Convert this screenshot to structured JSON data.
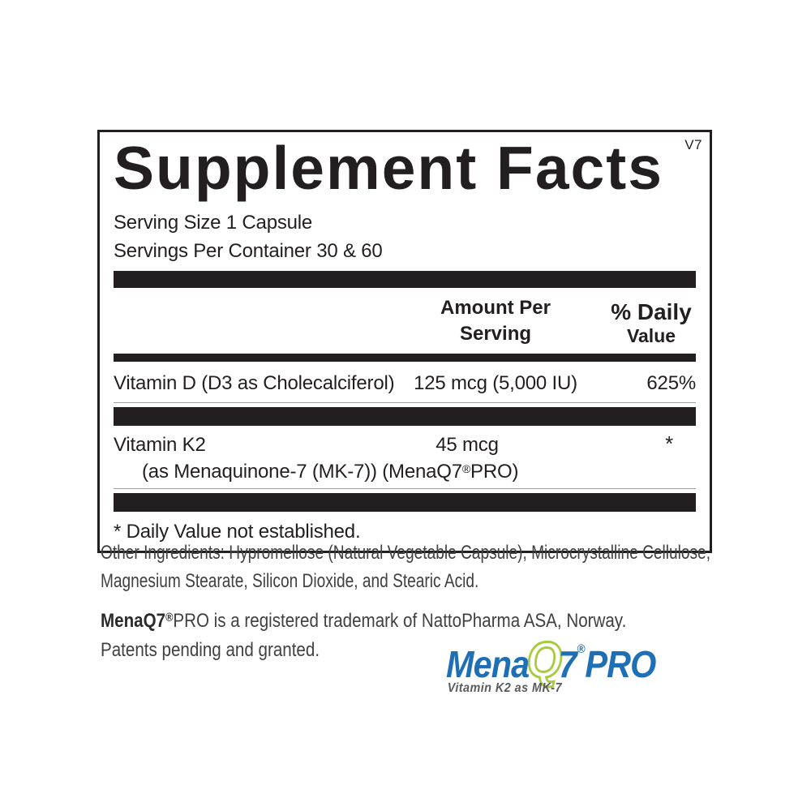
{
  "panel": {
    "version": "V7",
    "title": "Supplement Facts",
    "serving_size": "Serving Size 1 Capsule",
    "servings_per_container": "Servings Per Container 30 & 60",
    "header": {
      "amount_line1": "Amount Per",
      "amount_line2": "Serving",
      "dv_line1": "% Daily",
      "dv_line2": "Value"
    },
    "rows": [
      {
        "name": "Vitamin D (D3 as Cholecalciferol)",
        "amount": "125 mcg (5,000 IU)",
        "daily_value": "625%"
      },
      {
        "name": "Vitamin K2",
        "sub_pre": "(as Menaquinone-7 (MK-7)) (MenaQ7",
        "sub_reg": "®",
        "sub_post": "PRO)",
        "amount": "45 mcg",
        "daily_value": "*"
      }
    ],
    "footnote": "* Daily Value not established."
  },
  "other_ingredients": {
    "line1": "Other Ingredients: Hypromellose (Natural Vegetable Capsule), Microcrystalline Cellulose,",
    "line2": "Magnesium Stearate, Silicon Dioxide, and Stearic Acid."
  },
  "trademark": {
    "brand_bold": "MenaQ7",
    "reg_mark": "®",
    "line1_rest": "PRO is a registered trademark of NattoPharma ASA, Norway.",
    "line2": "Patents pending and granted."
  },
  "logo": {
    "word_part1": "Mena",
    "word_q": "Q",
    "word_part2": "7",
    "reg_mark": "®",
    "word_part3": "PRO",
    "tagline": "Vitamin K2 as MK-7",
    "colors": {
      "blue": "#1f6fb4",
      "green": "#a6cb3d",
      "tagline_gray": "#5a5b5e",
      "text_black": "#231f20"
    }
  }
}
